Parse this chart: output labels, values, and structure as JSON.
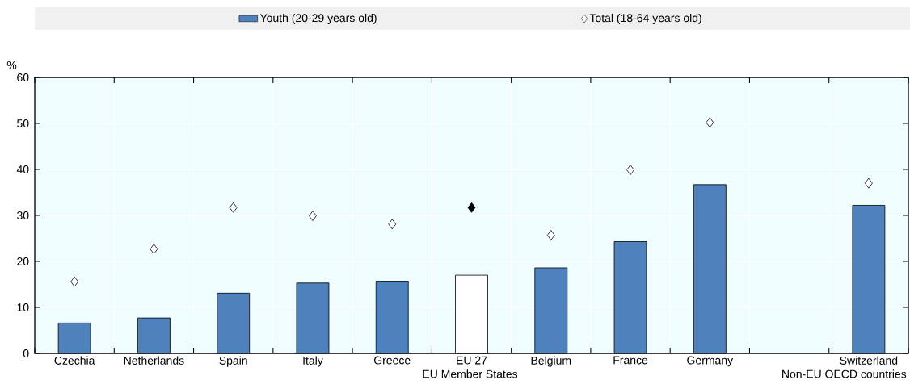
{
  "chart_data": {
    "type": "bar",
    "ylabel": "%",
    "categories": [
      "Czechia",
      "Netherlands",
      "Spain",
      "Italy",
      "Greece",
      "EU 27",
      "Belgium",
      "France",
      "Germany",
      null,
      "Switzerland"
    ],
    "series": [
      {
        "name": "Youth (20-29 years old)",
        "color": "#4f81bd",
        "colors": [
          "#4f81bd",
          "#4f81bd",
          "#4f81bd",
          "#4f81bd",
          "#4f81bd",
          "#ffffff",
          "#4f81bd",
          "#4f81bd",
          "#4f81bd",
          "#4f81bd",
          "#4f81bd"
        ],
        "values": [
          6.6,
          7.7,
          13.1,
          15.3,
          15.7,
          17.0,
          18.6,
          24.3,
          36.7,
          null,
          32.2
        ]
      },
      {
        "name": "Total (18-64 years old)",
        "type": "scatter",
        "marker": "diamond",
        "color": "#ffffff",
        "colors": [
          "#ffffff",
          "#ffffff",
          "#ffffff",
          "#ffffff",
          "#ffffff",
          "#000000",
          "#ffffff",
          "#ffffff",
          "#ffffff",
          "#ffffff",
          "#ffffff"
        ],
        "values": [
          15.6,
          22.7,
          31.7,
          29.9,
          28.1,
          31.7,
          25.7,
          39.9,
          50.2,
          null,
          37.0
        ]
      }
    ],
    "ylim": [
      0,
      60
    ],
    "yticks": [
      0,
      10,
      20,
      30,
      40,
      50,
      60
    ],
    "grid": true,
    "legend": "top",
    "annotations": [
      "EU Member States",
      "Non-EU OECD countries"
    ]
  }
}
